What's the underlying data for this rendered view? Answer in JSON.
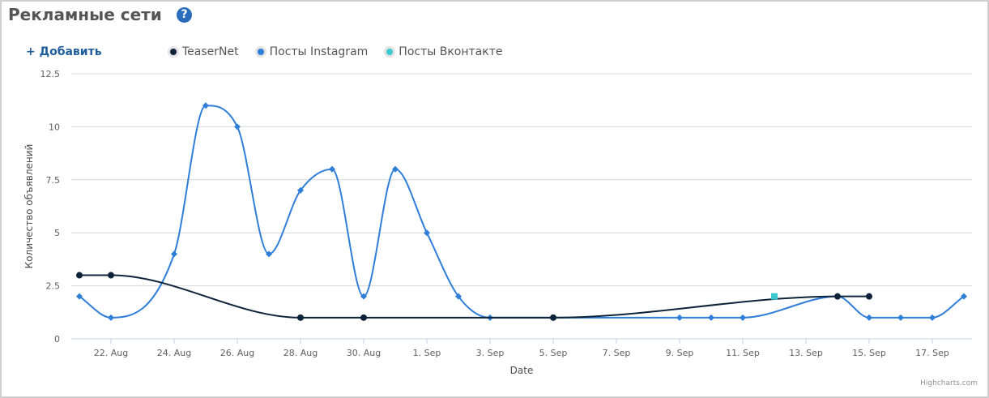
{
  "page": {
    "title": "Рекламные сети",
    "help_icon_label": "?",
    "add_button": "+ Добавить",
    "credits": "Highcharts.com"
  },
  "legend": [
    {
      "name": "TeaserNet",
      "color": "#0d233a"
    },
    {
      "name": "Посты Instagram",
      "color": "#2f7ed8"
    },
    {
      "name": "Посты Вконтакте",
      "color": "#3cc8cf"
    }
  ],
  "chart_data": {
    "type": "line",
    "smooth": true,
    "xlabel": "Date",
    "ylabel": "Количество объявлений",
    "ylim": [
      0,
      12.5
    ],
    "yticks": [
      0,
      2.5,
      5,
      7.5,
      10,
      12.5
    ],
    "ytick_labels": [
      "0",
      "2.5",
      "5",
      "7.5",
      "10",
      "12.5"
    ],
    "xlim": [
      "2023-08-21",
      "2023-09-18"
    ],
    "xticks": [
      "2023-08-22",
      "2023-08-24",
      "2023-08-26",
      "2023-08-28",
      "2023-08-30",
      "2023-09-01",
      "2023-09-03",
      "2023-09-05",
      "2023-09-07",
      "2023-09-09",
      "2023-09-11",
      "2023-09-13",
      "2023-09-15",
      "2023-09-17"
    ],
    "xtick_labels": [
      "22. Aug",
      "24. Aug",
      "26. Aug",
      "28. Aug",
      "30. Aug",
      "1. Sep",
      "3. Sep",
      "5. Sep",
      "7. Sep",
      "9. Sep",
      "11. Sep",
      "13. Sep",
      "15. Sep",
      "17. Sep"
    ],
    "grid": true,
    "legend_position": "top",
    "series": [
      {
        "name": "TeaserNet",
        "color": "#0d233a",
        "marker": "circle",
        "points": [
          {
            "x": "2023-08-21",
            "y": 3
          },
          {
            "x": "2023-08-22",
            "y": 3
          },
          {
            "x": "2023-08-28",
            "y": 1
          },
          {
            "x": "2023-08-30",
            "y": 1
          },
          {
            "x": "2023-09-05",
            "y": 1
          },
          {
            "x": "2023-09-14",
            "y": 2
          },
          {
            "x": "2023-09-15",
            "y": 2
          }
        ]
      },
      {
        "name": "Посты Instagram",
        "color": "#2f7ed8",
        "marker": "diamond",
        "points": [
          {
            "x": "2023-08-21",
            "y": 2
          },
          {
            "x": "2023-08-22",
            "y": 1
          },
          {
            "x": "2023-08-24",
            "y": 4
          },
          {
            "x": "2023-08-25",
            "y": 11
          },
          {
            "x": "2023-08-26",
            "y": 10
          },
          {
            "x": "2023-08-27",
            "y": 4
          },
          {
            "x": "2023-08-28",
            "y": 7
          },
          {
            "x": "2023-08-29",
            "y": 8
          },
          {
            "x": "2023-08-30",
            "y": 2
          },
          {
            "x": "2023-08-31",
            "y": 8
          },
          {
            "x": "2023-09-01",
            "y": 5
          },
          {
            "x": "2023-09-02",
            "y": 2
          },
          {
            "x": "2023-09-03",
            "y": 1
          },
          {
            "x": "2023-09-05",
            "y": 1
          },
          {
            "x": "2023-09-09",
            "y": 1
          },
          {
            "x": "2023-09-10",
            "y": 1
          },
          {
            "x": "2023-09-11",
            "y": 1
          },
          {
            "x": "2023-09-14",
            "y": 2
          },
          {
            "x": "2023-09-15",
            "y": 1
          },
          {
            "x": "2023-09-16",
            "y": 1
          },
          {
            "x": "2023-09-17",
            "y": 1
          },
          {
            "x": "2023-09-18",
            "y": 2
          }
        ]
      },
      {
        "name": "Посты Вконтакте",
        "color": "#3cc8cf",
        "marker": "square",
        "points": [
          {
            "x": "2023-09-12",
            "y": 2
          }
        ]
      }
    ]
  }
}
